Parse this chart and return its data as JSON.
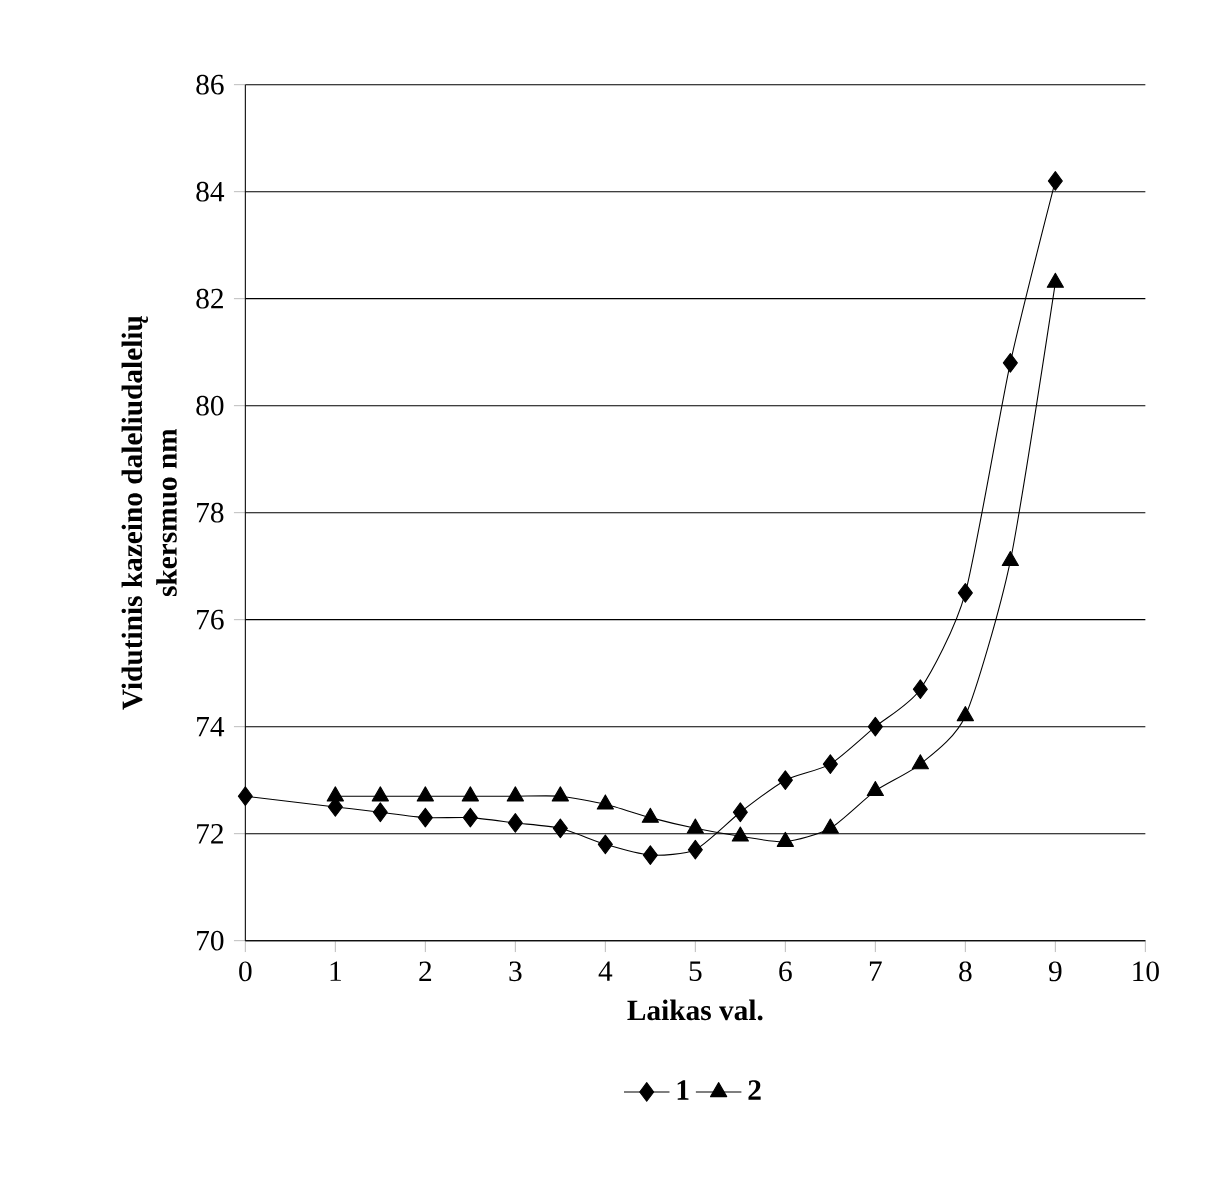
{
  "chart_data": {
    "type": "line",
    "xlabel": "Laikas val.",
    "ylabel": "Vidutinis kazeino daleliudalelių skersmuo nm",
    "x": [
      0,
      1,
      1.5,
      2,
      2.5,
      3,
      3.5,
      4,
      4.5,
      5,
      5.5,
      6,
      6.5,
      7,
      7.5,
      8,
      8.5,
      9
    ],
    "series": [
      {
        "name": "1",
        "color": "#000000",
        "marker": "diamond",
        "values": [
          72.7,
          72.5,
          72.4,
          72.3,
          72.3,
          72.2,
          72.1,
          71.8,
          71.6,
          71.7,
          72.4,
          73.0,
          73.3,
          74.0,
          74.7,
          76.5,
          80.8,
          84.2
        ]
      },
      {
        "name": "2",
        "color": "#000000",
        "marker": "triangle",
        "values": [
          null,
          72.7,
          72.7,
          72.7,
          72.7,
          72.7,
          72.7,
          72.55,
          72.3,
          72.1,
          71.95,
          71.85,
          72.1,
          72.8,
          73.3,
          74.2,
          77.1,
          82.3
        ]
      }
    ],
    "xlim": [
      0,
      10
    ],
    "xticks": [
      0,
      1,
      2,
      3,
      4,
      5,
      6,
      7,
      8,
      9,
      10
    ],
    "ylim": [
      70,
      86
    ],
    "yticks": [
      70,
      72,
      74,
      76,
      78,
      80,
      82,
      84,
      86
    ],
    "grid": "y",
    "legend": "bottom",
    "line_style": "solid"
  }
}
